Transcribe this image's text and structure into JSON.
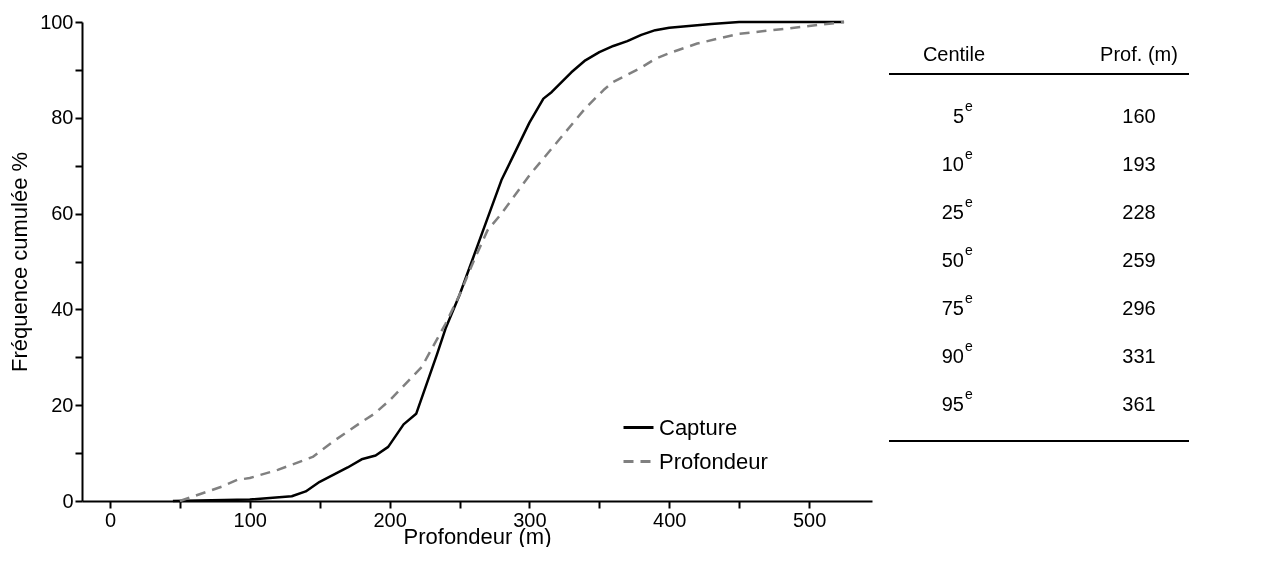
{
  "chart_data": [
    {
      "type": "line",
      "xlabel": "Profondeur (m)",
      "ylabel": "Fréquence cumulée %",
      "xlim": [
        -20,
        545
      ],
      "ylim": [
        0,
        100
      ],
      "xticks": [
        0,
        {
          "value": 50,
          "label": null
        },
        100,
        {
          "value": 150,
          "label": null
        },
        200,
        {
          "value": 250,
          "label": null
        },
        300,
        {
          "value": 350,
          "label": null
        },
        400,
        {
          "value": 450,
          "label": null
        },
        500
      ],
      "yticks": [
        0,
        {
          "value": 10,
          "label": null
        },
        20,
        {
          "value": 30,
          "label": null
        },
        40,
        {
          "value": 50,
          "label": null
        },
        60,
        {
          "value": 70,
          "label": null
        },
        80,
        {
          "value": 90,
          "label": null
        },
        100
      ],
      "grid": false,
      "legend": "bottom right",
      "series": [
        {
          "name": "Capture",
          "color": "#000000",
          "line_style": "solid",
          "x": [
            45,
            100,
            130,
            140,
            150,
            160,
            170,
            180,
            190,
            199,
            210,
            219,
            234,
            240,
            250,
            260,
            270,
            280,
            290,
            300,
            310,
            316,
            330,
            340,
            350,
            360,
            370,
            380,
            390,
            400,
            430,
            450,
            525
          ],
          "values": [
            0,
            0.3,
            1,
            2,
            4,
            5.5,
            7,
            8.7,
            9.5,
            11.3,
            16,
            18.2,
            30.7,
            36,
            43,
            51,
            59,
            67,
            73,
            79,
            84,
            85.4,
            89.5,
            92,
            93.7,
            95,
            96,
            97.3,
            98.3,
            98.8,
            99.6,
            100,
            100
          ]
        },
        {
          "name": "Profondeur",
          "color": "#808080",
          "line_style": "dashed",
          "x": [
            50,
            60,
            80,
            91,
            100,
            120,
            145,
            160,
            180,
            189,
            200,
            223,
            240,
            250,
            260,
            270,
            280,
            300,
            320,
            340,
            353,
            360,
            380,
            390,
            400,
            420,
            449,
            480,
            525
          ],
          "values": [
            0,
            1,
            3,
            4.4,
            4.8,
            6.5,
            9.2,
            12.5,
            16.5,
            18.2,
            21,
            28,
            37,
            43,
            50,
            56.5,
            60,
            68,
            75,
            82,
            85.8,
            87.5,
            90.5,
            92.3,
            93.5,
            95.5,
            97.5,
            98.5,
            100
          ]
        }
      ]
    },
    {
      "type": "other",
      "annotations": [
        "Centile",
        "Prof. (m)"
      ],
      "categories": [
        "5$^{e}$",
        "10$^{e}$",
        "25$^{e}$",
        "50$^{e}$",
        "75$^{e}$",
        "90$^{e}$",
        "95$^{e}$"
      ],
      "values": [
        160,
        193,
        228,
        259,
        296,
        331,
        361
      ],
      "data_labels": true
    }
  ]
}
